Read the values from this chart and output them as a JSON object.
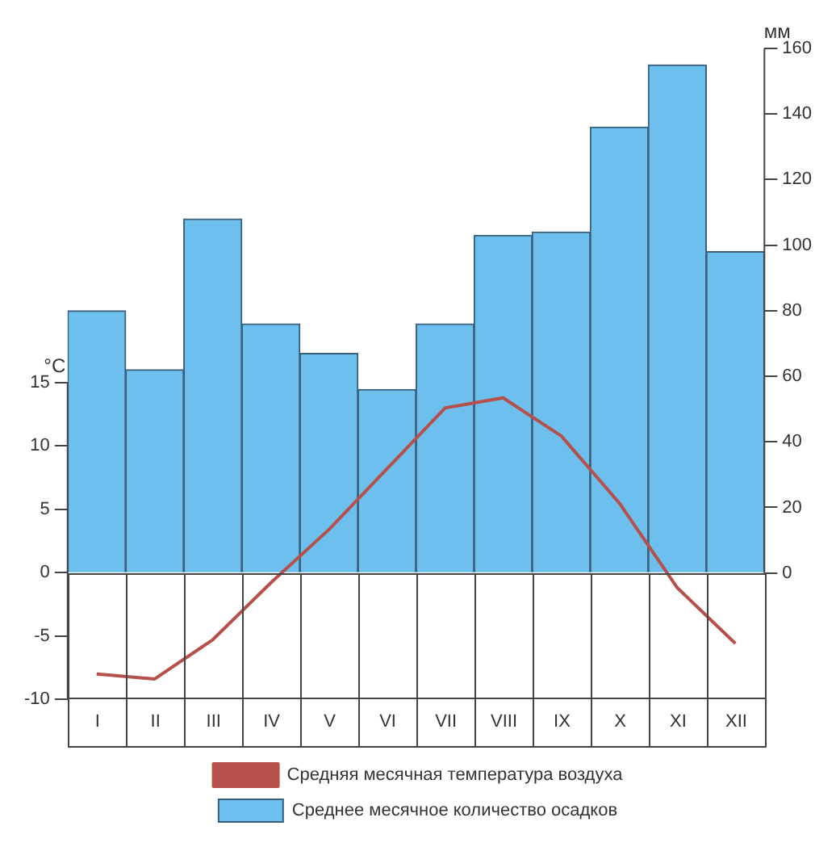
{
  "chart_data": {
    "type": "bar",
    "categories": [
      "I",
      "II",
      "III",
      "IV",
      "V",
      "VI",
      "VII",
      "VIII",
      "IX",
      "X",
      "XI",
      "XII"
    ],
    "ylabel": "°C",
    "y2label": "мм",
    "series": [
      {
        "name": "Среднее месячное количество осадков",
        "axis": "y2",
        "color": "#6dbfee",
        "values": [
          80,
          62,
          108,
          76,
          67,
          56,
          76,
          103,
          104,
          136,
          155,
          98
        ]
      },
      {
        "name": "Средняя месячная температура воздуха",
        "type": "line",
        "axis": "y",
        "color": "#b5514a",
        "values": [
          -8.0,
          -8.4,
          -5.3,
          -0.8,
          3.4,
          8.2,
          13.0,
          13.8,
          10.8,
          5.5,
          -1.2,
          -5.6
        ]
      }
    ],
    "ylim": [
      -10,
      41.4
    ],
    "yticks": [
      -10,
      -5,
      0,
      5,
      10,
      15
    ],
    "y2lim": [
      -38.5,
      160
    ],
    "y2ticks": [
      0,
      20,
      40,
      60,
      80,
      100,
      120,
      140,
      160
    ],
    "legend": "bottom",
    "marker": "none",
    "line_style": "solid"
  }
}
